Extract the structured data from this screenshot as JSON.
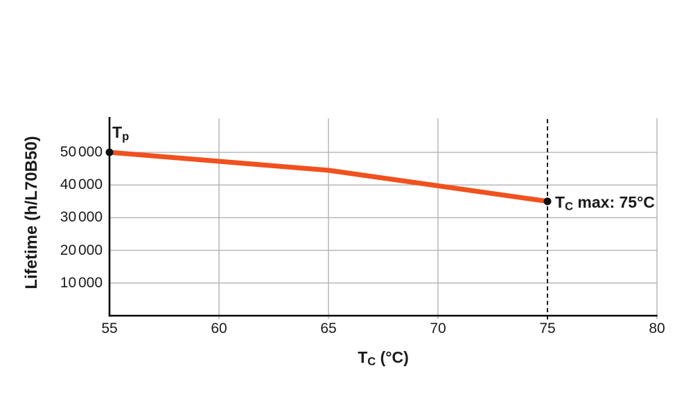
{
  "chart_data": {
    "type": "line",
    "title": "",
    "x_axis": {
      "label": {
        "main": "T",
        "sub": "C",
        "rest": " (°C)"
      },
      "ticks": [
        {
          "value": 55,
          "label": "55"
        },
        {
          "value": 60,
          "label": "60"
        },
        {
          "value": 65,
          "label": "65"
        },
        {
          "value": 70,
          "label": "70"
        },
        {
          "value": 75,
          "label": "75"
        },
        {
          "value": 80,
          "label": "80"
        }
      ],
      "range": [
        55,
        80
      ],
      "gridlines": [
        60,
        65,
        70,
        80
      ]
    },
    "y_axis": {
      "label": "Lifetime (h/L70B50)",
      "ticks": [
        {
          "value": 50000,
          "label": "50 000"
        },
        {
          "value": 40000,
          "label": "40 000"
        },
        {
          "value": 30000,
          "label": "30 000"
        },
        {
          "value": 20000,
          "label": "20 000"
        },
        {
          "value": 10000,
          "label": "10 000"
        }
      ],
      "range": [
        0,
        60600
      ],
      "gridlines": [
        10000,
        20000,
        30000,
        40000,
        50000
      ]
    },
    "series": [
      {
        "name": "lifetime-vs-case-temperature",
        "color": "#F0511E",
        "points": [
          {
            "x": 55,
            "y": 50000
          },
          {
            "x": 65,
            "y": 44500
          },
          {
            "x": 75,
            "y": 35000
          }
        ]
      }
    ],
    "markers": [
      {
        "x": 55,
        "y": 50000
      },
      {
        "x": 75,
        "y": 35000
      }
    ],
    "reference_line": {
      "x": 75,
      "style": "dashed"
    },
    "annotations": {
      "start_point": {
        "main": "T",
        "sub": "p",
        "rest": ""
      },
      "end_point": {
        "main": "T",
        "sub": "C",
        "rest": " max: 75°C"
      }
    },
    "legend": {
      "visible": false
    },
    "grid": true
  },
  "colors": {
    "line": "#F0511E",
    "grid": "#B2B2B2",
    "axis": "#000000",
    "text": "#1a1a1a",
    "marker": "#111111",
    "background": "#ffffff"
  }
}
